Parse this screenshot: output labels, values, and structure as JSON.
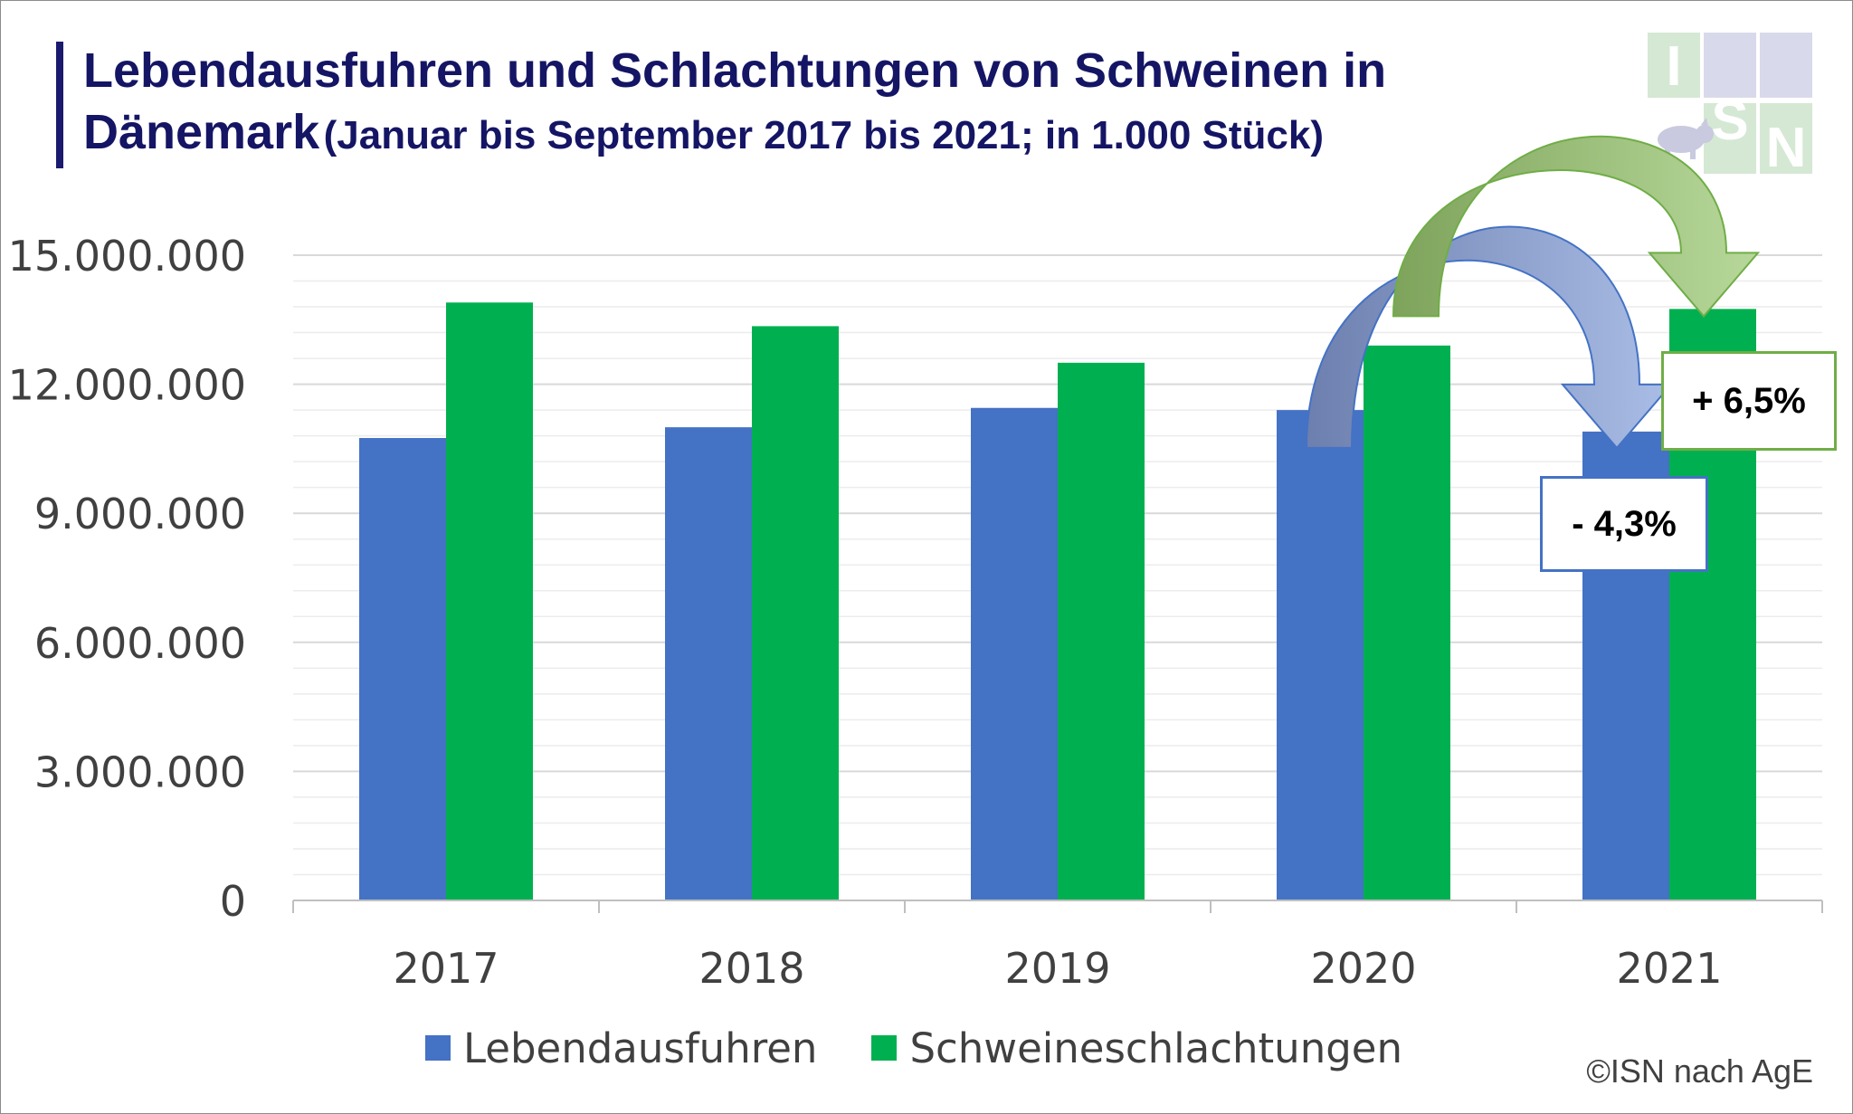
{
  "title": {
    "line1": "Lebendausfuhren und Schlachtungen von Schweinen in",
    "line2_main": "Dänemark",
    "line2_sub": "(Januar bis September 2017 bis 2021; in 1.000 Stück)"
  },
  "logo_letters": [
    "I",
    "S",
    "N"
  ],
  "colors": {
    "lebendausfuhren": "#4472c4",
    "schweineschlachtungen": "#00b050",
    "title": "#151565"
  },
  "annotations": {
    "green_change": "+ 6,5%",
    "blue_change": "- 4,3%"
  },
  "credit": "©ISN nach AgE",
  "chart_data": {
    "type": "bar",
    "categories": [
      "2017",
      "2018",
      "2019",
      "2020",
      "2021"
    ],
    "series": [
      {
        "name": "Lebendausfuhren",
        "values": [
          10750000,
          11000000,
          11450000,
          11400000,
          10900000
        ],
        "color": "#4472c4"
      },
      {
        "name": "Schweineschlachtungen",
        "values": [
          13900000,
          13350000,
          12500000,
          12900000,
          13750000
        ],
        "color": "#00b050"
      }
    ],
    "yticks": [
      "0",
      "3.000.000",
      "6.000.000",
      "9.000.000",
      "12.000.000",
      "15.000.000"
    ],
    "ytick_values": [
      0,
      3000000,
      6000000,
      9000000,
      12000000,
      15000000
    ],
    "ylim": [
      0,
      15000000
    ],
    "grid": true,
    "legend": "bottom"
  }
}
